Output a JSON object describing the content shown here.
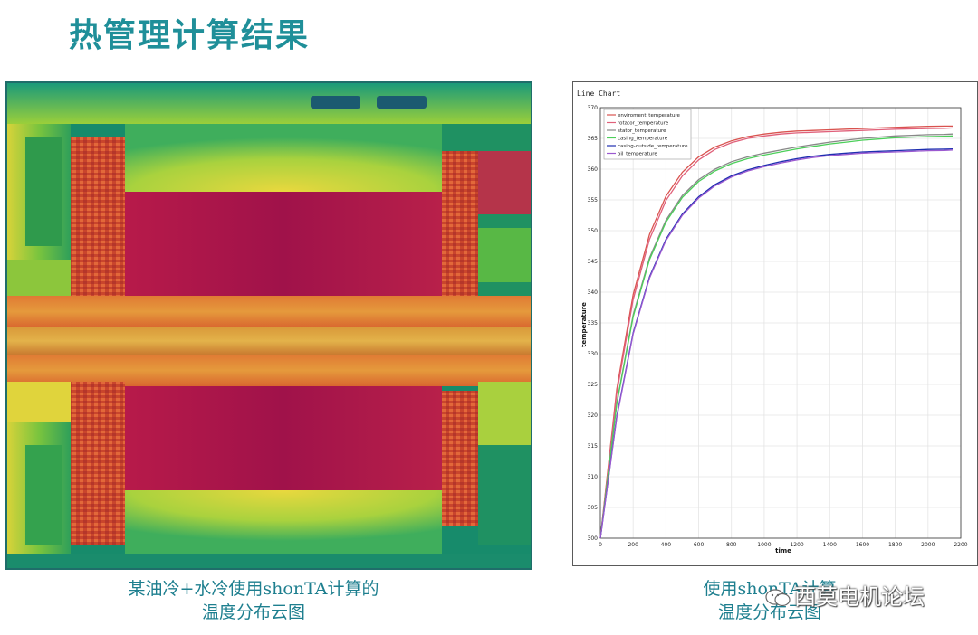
{
  "slide": {
    "title": "热管理计算结果",
    "caption_left": [
      "某油冷+水冷使用shonTA计算的",
      "温度分布云图"
    ],
    "caption_right": [
      "使用shonTA计算",
      "温度分布云图"
    ],
    "watermark": "西莫电机论坛"
  },
  "colors": {
    "title": "#1f8f99",
    "caption": "#1e7f8f",
    "hot": "#a0124a",
    "warm": "#d8662c",
    "mild": "#e7d23a",
    "cool": "#2fa65a",
    "cold": "#16806a"
  },
  "chart_data": {
    "type": "line",
    "title": "Line Chart",
    "xlabel": "time",
    "ylabel": "temperature",
    "xlim": [
      0,
      2200
    ],
    "ylim": [
      300,
      370
    ],
    "xticks": [
      0,
      200,
      400,
      600,
      800,
      1000,
      1200,
      1400,
      1600,
      1800,
      2000,
      2200
    ],
    "yticks": [
      300,
      305,
      310,
      315,
      320,
      325,
      330,
      335,
      340,
      345,
      350,
      355,
      360,
      365,
      370
    ],
    "grid": true,
    "legend_position": "top-left",
    "x": [
      0,
      100,
      200,
      300,
      400,
      500,
      600,
      700,
      800,
      900,
      1000,
      1100,
      1200,
      1300,
      1400,
      1500,
      1600,
      1700,
      1800,
      1900,
      2000,
      2100,
      2150
    ],
    "series": [
      {
        "name": "enviroment_temperature",
        "color": "#d9534f",
        "values": [
          300,
          324.2,
          339.6,
          349.4,
          355.6,
          359.5,
          362.0,
          363.6,
          364.6,
          365.3,
          365.7,
          366.0,
          366.2,
          366.3,
          366.4,
          366.5,
          366.6,
          366.7,
          366.8,
          366.9,
          366.95,
          367.0,
          367.0
        ]
      },
      {
        "name": "rotator_temperature",
        "color": "#e0607a",
        "values": [
          300,
          323.6,
          338.8,
          348.6,
          354.9,
          358.9,
          361.5,
          363.2,
          364.3,
          365.0,
          365.4,
          365.7,
          365.9,
          366.0,
          366.1,
          366.2,
          366.3,
          366.4,
          366.5,
          366.55,
          366.6,
          366.65,
          366.7
        ]
      },
      {
        "name": "stator_temperature",
        "color": "#888888",
        "values": [
          300,
          322.0,
          336.3,
          345.6,
          351.7,
          355.7,
          358.3,
          360.0,
          361.2,
          362.0,
          362.6,
          363.1,
          363.6,
          364.0,
          364.4,
          364.7,
          365.0,
          365.2,
          365.4,
          365.5,
          365.6,
          365.65,
          365.7
        ]
      },
      {
        "name": "casing_temperature",
        "color": "#4ccf5a",
        "values": [
          300,
          321.8,
          336.0,
          345.3,
          351.4,
          355.4,
          358.0,
          359.7,
          360.9,
          361.7,
          362.3,
          362.8,
          363.3,
          363.7,
          364.1,
          364.4,
          364.7,
          364.9,
          365.1,
          365.2,
          365.3,
          365.35,
          365.4
        ]
      },
      {
        "name": "casing-outside_temperature",
        "color": "#1f2fb0",
        "values": [
          300,
          319.8,
          333.4,
          342.5,
          348.6,
          352.7,
          355.5,
          357.5,
          358.9,
          359.9,
          360.6,
          361.2,
          361.7,
          362.1,
          362.4,
          362.6,
          362.8,
          362.9,
          363.0,
          363.1,
          363.2,
          363.25,
          363.3
        ]
      },
      {
        "name": "oil_temperature",
        "color": "#9b59d0",
        "values": [
          300,
          319.6,
          333.2,
          342.3,
          348.4,
          352.5,
          355.3,
          357.3,
          358.7,
          359.7,
          360.4,
          361.0,
          361.5,
          361.9,
          362.2,
          362.4,
          362.6,
          362.7,
          362.8,
          362.9,
          363.0,
          363.05,
          363.1
        ]
      }
    ]
  }
}
